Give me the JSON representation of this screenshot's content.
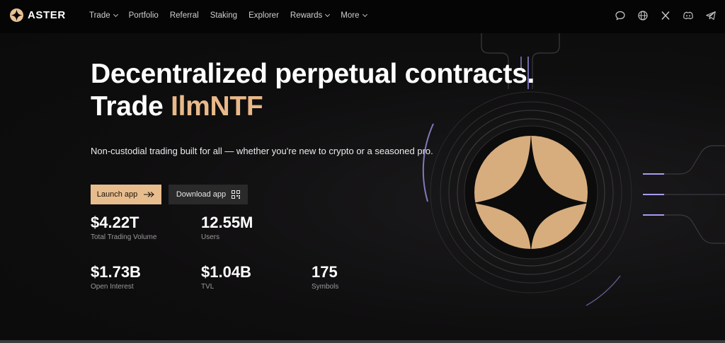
{
  "brand": {
    "name": "ASTER"
  },
  "nav": {
    "items": [
      {
        "label": "Trade",
        "has_dropdown": true
      },
      {
        "label": "Portfolio",
        "has_dropdown": false
      },
      {
        "label": "Referral",
        "has_dropdown": false
      },
      {
        "label": "Staking",
        "has_dropdown": false
      },
      {
        "label": "Explorer",
        "has_dropdown": false
      },
      {
        "label": "Rewards",
        "has_dropdown": true
      },
      {
        "label": "More",
        "has_dropdown": true
      }
    ],
    "social_icons": [
      "chat-bubble-icon",
      "globe-icon",
      "x-icon",
      "discord-icon",
      "telegram-icon"
    ]
  },
  "hero": {
    "headline_line1": "Decentralized perpetual contracts.",
    "headline_line2_prefix": "Trade ",
    "headline_line2_accent": "IlmNTF",
    "subtitle": "Non-custodial trading built for all — whether you're new to crypto or a seasoned pro.",
    "launch_label": "Launch app",
    "download_label": "Download app"
  },
  "stats": [
    {
      "value": "$4.22T",
      "label": "Total Trading Volume"
    },
    {
      "value": "12.55M",
      "label": "Users"
    },
    {
      "value": "$1.73B",
      "label": "Open Interest"
    },
    {
      "value": "$1.04B",
      "label": "TVL"
    },
    {
      "value": "175",
      "label": "Symbols"
    }
  ],
  "colors": {
    "accent": "#e8bd8e",
    "background": "#0c0b0b",
    "nav_background": "#050505",
    "ring_highlight": "#a79bf0"
  }
}
